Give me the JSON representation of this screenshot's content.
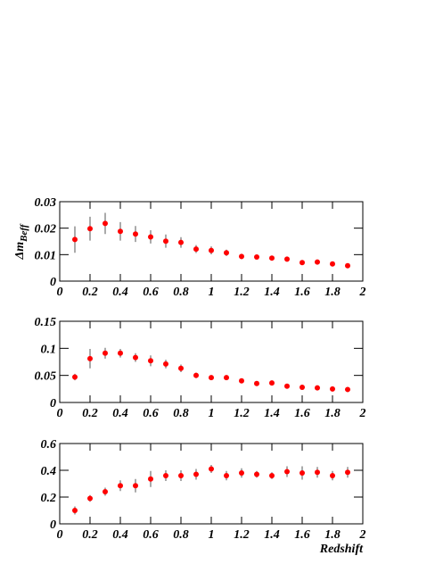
{
  "chart_data": [
    {
      "type": "scatter",
      "ylabel": "Δm",
      "ylabel_sub": "Beff",
      "x": [
        0.1,
        0.2,
        0.3,
        0.4,
        0.5,
        0.6,
        0.7,
        0.8,
        0.9,
        1.0,
        1.1,
        1.2,
        1.3,
        1.4,
        1.5,
        1.6,
        1.7,
        1.8,
        1.9
      ],
      "values": [
        0.0157,
        0.0198,
        0.0218,
        0.0188,
        0.0178,
        0.0167,
        0.0151,
        0.0146,
        0.0121,
        0.0116,
        0.0107,
        0.0093,
        0.0091,
        0.0087,
        0.0083,
        0.007,
        0.0072,
        0.0065,
        0.0058
      ],
      "errors": [
        0.005,
        0.0045,
        0.004,
        0.0035,
        0.003,
        0.0025,
        0.0025,
        0.002,
        0.0015,
        0.0015,
        0.0012,
        0.001,
        0.0008,
        0.0008,
        0.0008,
        0.0006,
        0.0005,
        0.0005,
        0.0008
      ],
      "color": "#ff0000",
      "error_color": "#555555",
      "xlim": [
        0,
        2
      ],
      "xticks": [
        0,
        0.2,
        0.4,
        0.6,
        0.8,
        1,
        1.2,
        1.4,
        1.6,
        1.8,
        2
      ],
      "ylim": [
        0,
        0.03
      ],
      "yticks": [
        0,
        0.01,
        0.02,
        0.03
      ]
    },
    {
      "type": "scatter",
      "x": [
        0.1,
        0.2,
        0.3,
        0.4,
        0.5,
        0.6,
        0.7,
        0.8,
        0.9,
        1.0,
        1.1,
        1.2,
        1.3,
        1.4,
        1.5,
        1.6,
        1.7,
        1.8,
        1.9
      ],
      "values": [
        0.047,
        0.081,
        0.091,
        0.091,
        0.083,
        0.077,
        0.071,
        0.063,
        0.05,
        0.046,
        0.046,
        0.04,
        0.035,
        0.036,
        0.03,
        0.028,
        0.027,
        0.025,
        0.024
      ],
      "errors": [
        0.006,
        0.018,
        0.01,
        0.008,
        0.008,
        0.01,
        0.008,
        0.007,
        0.005,
        0.004,
        0.004,
        0.003,
        0.003,
        0.003,
        0.002,
        0.002,
        0.002,
        0.002,
        0.002
      ],
      "color": "#ff0000",
      "error_color": "#555555",
      "xlim": [
        0,
        2
      ],
      "xticks": [
        0,
        0.2,
        0.4,
        0.6,
        0.8,
        1,
        1.2,
        1.4,
        1.6,
        1.8,
        2
      ],
      "ylim": [
        0,
        0.15
      ],
      "yticks": [
        0,
        0.05,
        0.1,
        0.15
      ]
    },
    {
      "type": "scatter",
      "xlabel": "Redshift",
      "x": [
        0.1,
        0.2,
        0.3,
        0.4,
        0.5,
        0.6,
        0.7,
        0.8,
        0.9,
        1.0,
        1.1,
        1.2,
        1.3,
        1.4,
        1.5,
        1.6,
        1.7,
        1.8,
        1.9
      ],
      "values": [
        0.1,
        0.19,
        0.24,
        0.285,
        0.285,
        0.335,
        0.36,
        0.36,
        0.37,
        0.41,
        0.36,
        0.38,
        0.37,
        0.36,
        0.39,
        0.38,
        0.385,
        0.36,
        0.385
      ],
      "errors": [
        0.03,
        0.025,
        0.03,
        0.04,
        0.05,
        0.06,
        0.04,
        0.04,
        0.04,
        0.03,
        0.035,
        0.035,
        0.025,
        0.025,
        0.04,
        0.05,
        0.04,
        0.035,
        0.04
      ],
      "color": "#ff0000",
      "error_color": "#555555",
      "xlim": [
        0,
        2
      ],
      "xticks": [
        0,
        0.2,
        0.4,
        0.6,
        0.8,
        1,
        1.2,
        1.4,
        1.6,
        1.8,
        2
      ],
      "ylim": [
        0,
        0.6
      ],
      "yticks": [
        0,
        0.2,
        0.4,
        0.6
      ]
    }
  ]
}
